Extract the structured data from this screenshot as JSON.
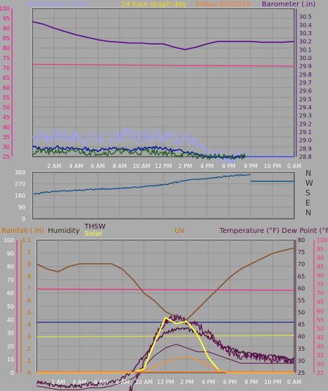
{
  "header": {
    "windspeed_label": "Windspeed (mph)",
    "graph_label": "24 hour graph day",
    "date_label": "Friday 01/02/15",
    "barometer_label": "Barometer (.in)"
  },
  "middle": {
    "compass": [
      "N",
      "W",
      "S",
      "E",
      "N"
    ]
  },
  "bottom": {
    "rainfall_label": "Rainfall (.in)",
    "humidity_label": "Humidity",
    "thsw_label": "THSW",
    "solar_label": "Solar",
    "uv_label": "UV",
    "temperature_label": "Temperature (°F) Dew Point (°F)"
  },
  "x_ticks": [
    "2 AM",
    "4 AM",
    "6 AM",
    "8 AM",
    "10 AM",
    "12 PM",
    "2 PM",
    "4 PM",
    "6 PM",
    "8 PM",
    "10 PM",
    "0 AM"
  ],
  "colors": {
    "background": "#ababab",
    "plot_bg": "#a6a6a6",
    "wind_left_axis": "#ff0090",
    "baro_axis": "#5a0a78",
    "direction": "#0a4a8a",
    "rain_axis": "#cc6600",
    "uv_axis": "#7a2a00",
    "temp_axis": "#5a1040",
    "dew_axis": "#ff2a7a",
    "solar_axis": "#ffff40"
  },
  "chart_data": [
    {
      "type": "line",
      "name": "wind_barometer",
      "x_hours": [
        0,
        1,
        2,
        3,
        4,
        5,
        6,
        7,
        8,
        9,
        10,
        11,
        12,
        13,
        14,
        15,
        16,
        17,
        18,
        19,
        20,
        21,
        22,
        23,
        24
      ],
      "series": [
        {
          "name": "Barometer",
          "axis": "right",
          "values": [
            30.44,
            30.41,
            30.36,
            30.32,
            30.28,
            30.25,
            30.22,
            30.2,
            30.19,
            30.18,
            30.18,
            30.17,
            30.17,
            30.13,
            30.1,
            30.13,
            30.17,
            30.2,
            30.2,
            30.2,
            30.2,
            30.19,
            30.19,
            30.19,
            30.2
          ]
        },
        {
          "name": "Windspeed",
          "axis": "left",
          "values": [
            31,
            31,
            31,
            31,
            31,
            31,
            31,
            31,
            31,
            31,
            31,
            31,
            31,
            31,
            31,
            31,
            31,
            31,
            31,
            31,
            31,
            31,
            31,
            31,
            31
          ]
        },
        {
          "name": "Gust",
          "axis": "left",
          "values": [
            35,
            36,
            35,
            36,
            35,
            35,
            34,
            35,
            34,
            35,
            36,
            37,
            35,
            36,
            37,
            36,
            34,
            35,
            32,
            29,
            25,
            25,
            25,
            25,
            25
          ]
        },
        {
          "name": "Avg",
          "axis": "left",
          "values": [
            30,
            29,
            29,
            30,
            29,
            29,
            29,
            28,
            29,
            29,
            29,
            28,
            29,
            29,
            30,
            29,
            28,
            28,
            27,
            26,
            25,
            25,
            25,
            25,
            25
          ]
        },
        {
          "name": "Low",
          "axis": "left",
          "values": [
            27,
            28,
            27,
            28,
            27,
            28,
            27,
            27,
            27,
            27,
            28,
            27,
            27,
            28,
            27,
            27,
            26,
            26,
            26,
            25,
            25,
            25,
            25,
            25,
            25
          ]
        }
      ],
      "ylim_left": [
        25,
        100
      ],
      "ylim_right": [
        28.8,
        30.6
      ],
      "yticks_left": [
        25,
        30,
        35,
        40,
        45,
        50,
        55,
        60,
        65,
        70,
        75,
        80,
        85,
        90,
        95,
        100
      ],
      "yticks_right": [
        28.8,
        28.9,
        29.0,
        29.1,
        29.2,
        29.3,
        29.4,
        29.5,
        29.6,
        29.7,
        29.8,
        29.9,
        30.0,
        30.1,
        30.2,
        30.3,
        30.4,
        30.5
      ]
    },
    {
      "type": "line",
      "name": "wind_direction",
      "x_hours": [
        0,
        1,
        2,
        3,
        4,
        5,
        6,
        7,
        8,
        9,
        10,
        11,
        12,
        13,
        14,
        15,
        16,
        17,
        18,
        19,
        20,
        21,
        22,
        23,
        24
      ],
      "series": [
        {
          "name": "Direction",
          "values": [
            190,
            205,
            210,
            215,
            220,
            225,
            230,
            232,
            236,
            240,
            248,
            255,
            262,
            280,
            295,
            305,
            310,
            320,
            330,
            338,
            290,
            290,
            290,
            290,
            290
          ]
        }
      ],
      "ylim": [
        0,
        360
      ],
      "yticks": [
        0,
        90,
        180,
        270,
        360
      ]
    },
    {
      "type": "line",
      "name": "temp_humidity",
      "x_hours": [
        0,
        1,
        2,
        3,
        4,
        5,
        6,
        7,
        8,
        9,
        10,
        11,
        12,
        13,
        14,
        15,
        16,
        17,
        18,
        19,
        20,
        21,
        22,
        23,
        24
      ],
      "series": [
        {
          "name": "Humidity",
          "axis": "humidity",
          "values": [
            82,
            78,
            76,
            80,
            82,
            82,
            82,
            82,
            78,
            70,
            60,
            54,
            46,
            42,
            40,
            48,
            56,
            64,
            72,
            78,
            82,
            86,
            90,
            92,
            94
          ]
        },
        {
          "name": "Temperature",
          "axis": "temp",
          "values": [
            20,
            19,
            18,
            18,
            18,
            19,
            19,
            20,
            22,
            26,
            34,
            42,
            46,
            48,
            48,
            46,
            44,
            40,
            38,
            36,
            35,
            34,
            34,
            33,
            32
          ]
        },
        {
          "name": "DewPoint",
          "axis": "temp",
          "values": [
            18,
            17,
            16,
            16,
            16,
            17,
            17,
            18,
            20,
            22,
            28,
            34,
            38,
            40,
            38,
            36,
            36,
            34,
            32,
            30,
            30,
            30,
            30,
            30,
            30
          ]
        },
        {
          "name": "THSW",
          "axis": "temp",
          "values": [
            12,
            11,
            12,
            11,
            12,
            11,
            12,
            12,
            12,
            18,
            30,
            44,
            52,
            54,
            52,
            50,
            46,
            40,
            36,
            34,
            34,
            33,
            32,
            32,
            31
          ]
        },
        {
          "name": "Solar",
          "axis": "solar",
          "values": [
            0,
            0,
            0,
            0,
            0,
            0,
            0,
            0,
            0,
            0,
            20,
            160,
            290,
            260,
            270,
            200,
            80,
            10,
            0,
            0,
            0,
            0,
            0,
            0,
            0
          ]
        },
        {
          "name": "UV",
          "axis": "uv",
          "values": [
            0,
            0,
            0,
            0,
            0,
            0,
            0,
            0,
            0,
            0,
            0.05,
            0.15,
            0.25,
            0.35,
            0.4,
            0.32,
            0.2,
            0.05,
            0,
            0,
            0,
            0,
            0,
            0,
            0
          ]
        }
      ],
      "ylim_humidity": [
        0,
        100
      ],
      "yticks_humidity": [
        0,
        10,
        20,
        30,
        40,
        50,
        60,
        70,
        80,
        90,
        100
      ],
      "ylim_rain": [
        0,
        1.1
      ],
      "yticks_rain": [
        0,
        0.1,
        0.2,
        0.3,
        0.4,
        0.5,
        0.6,
        0.7,
        0.8,
        0.9,
        1.0,
        1.1
      ],
      "ylim_temp": [
        25,
        100
      ],
      "yticks_temp_left": [
        25,
        30,
        35,
        40,
        45,
        50,
        55,
        60,
        65,
        70,
        75,
        80
      ],
      "yticks_temp_right": [
        25,
        30,
        35,
        40,
        45,
        50,
        55,
        60,
        65,
        70,
        75,
        80,
        85,
        90,
        95,
        100
      ]
    }
  ]
}
